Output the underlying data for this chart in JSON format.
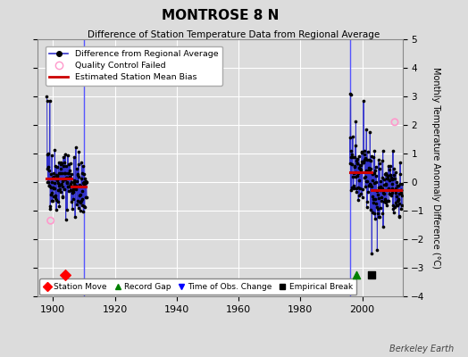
{
  "title": "MONTROSE 8 N",
  "subtitle": "Difference of Station Temperature Data from Regional Average",
  "ylabel": "Monthly Temperature Anomaly Difference (°C)",
  "xlim": [
    1895,
    2013
  ],
  "ylim": [
    -4,
    5
  ],
  "yticks": [
    -4,
    -3,
    -2,
    -1,
    0,
    1,
    2,
    3,
    4,
    5
  ],
  "xticks": [
    1900,
    1920,
    1940,
    1960,
    1980,
    2000
  ],
  "background_color": "#dcdcdc",
  "plot_background": "#dcdcdc",
  "grid_color": "#ffffff",
  "vline1_x": 1910,
  "vline2_x": 1996,
  "vline_color": "#5555ff",
  "data_line_color": "#3333cc",
  "bias_line_color": "#cc0000",
  "qc_fail_color": "#ff99cc",
  "marker_color": "#000000",
  "bias1_start": 1898,
  "bias1_mid": 1906,
  "bias1_end": 1910.5,
  "bias1_early_val": 0.12,
  "bias1_late_val": -0.15,
  "bias2_start": 1996,
  "bias2_mid": 2003,
  "bias2_end": 2012.5,
  "bias2_early_val": 0.35,
  "bias2_late_val": -0.28,
  "station_move_x": 1904,
  "record_gap_x": 1998,
  "empirical_break_x": 2003,
  "event_y": -3.25,
  "qc1_x": 1899.25,
  "qc1_y": -1.35,
  "qc2_x": 2010.5,
  "qc2_y": 2.1
}
